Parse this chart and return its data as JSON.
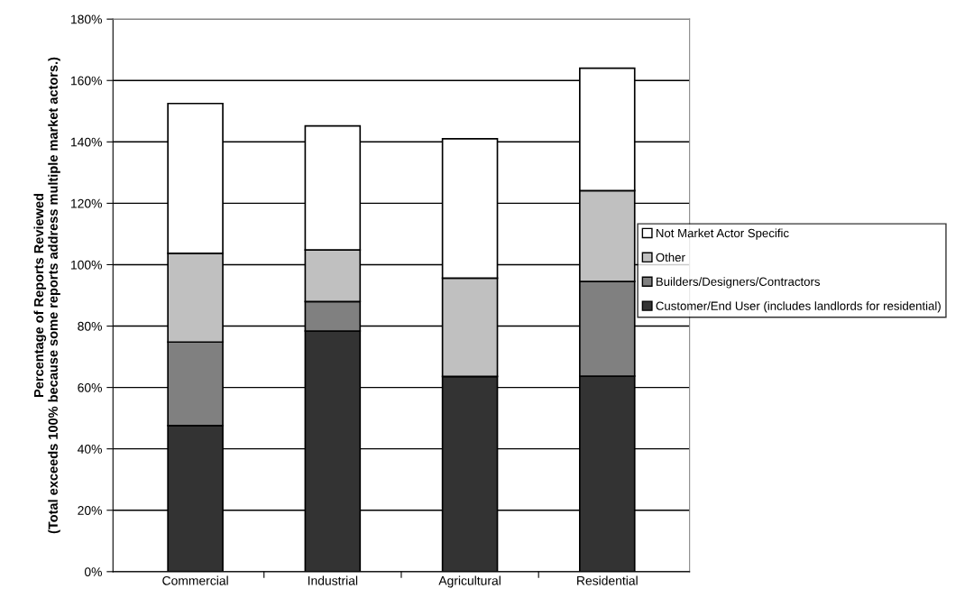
{
  "chart_data": {
    "type": "bar",
    "stacked": true,
    "ylabel": "Percentage of Reports Reviewed\n(Total exceeds 100% because some reports address multiple market actors.)",
    "categories": [
      "Commercial",
      "Industrial",
      "Agricultural",
      "Residential"
    ],
    "series": [
      {
        "name": "Customer/End User (includes landlords for residential)",
        "color": "#333333",
        "values": [
          47.6,
          78.4,
          63.6,
          63.7
        ]
      },
      {
        "name": "Builders/Designers/Contractors",
        "color": "#808080",
        "values": [
          27.2,
          9.6,
          0,
          30.8
        ]
      },
      {
        "name": "Other",
        "color": "#c0c0c0",
        "values": [
          28.9,
          16.8,
          32.0,
          29.6
        ]
      },
      {
        "name": "Not Market Actor Specific",
        "color": "#ffffff",
        "values": [
          48.8,
          40.4,
          45.4,
          39.9
        ]
      }
    ],
    "ylim": [
      0,
      180
    ],
    "yticks": [
      {
        "value": 0,
        "label": "0%"
      },
      {
        "value": 20,
        "label": "20%"
      },
      {
        "value": 40,
        "label": "40%"
      },
      {
        "value": 60,
        "label": "60%"
      },
      {
        "value": 80,
        "label": "80%"
      },
      {
        "value": 100,
        "label": "100%"
      },
      {
        "value": 120,
        "label": "120%"
      },
      {
        "value": 140,
        "label": "140%"
      },
      {
        "value": 160,
        "label": "160%"
      },
      {
        "value": 180,
        "label": "180%"
      }
    ],
    "grid": "y",
    "legend": "right"
  }
}
